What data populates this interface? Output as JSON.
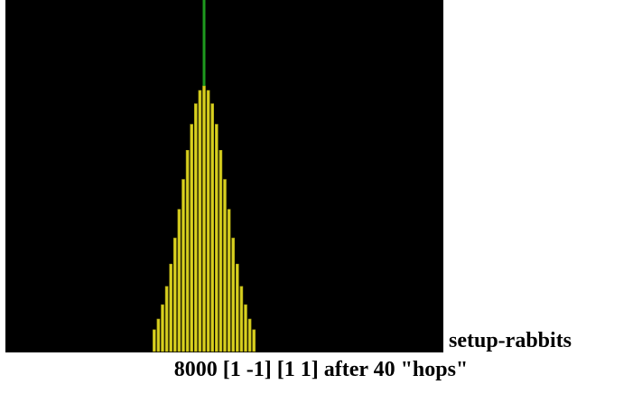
{
  "view": {
    "label": "setup-rabbits"
  },
  "caption": "8000 [1 -1] [1 1] after 40 \"hops\""
}
